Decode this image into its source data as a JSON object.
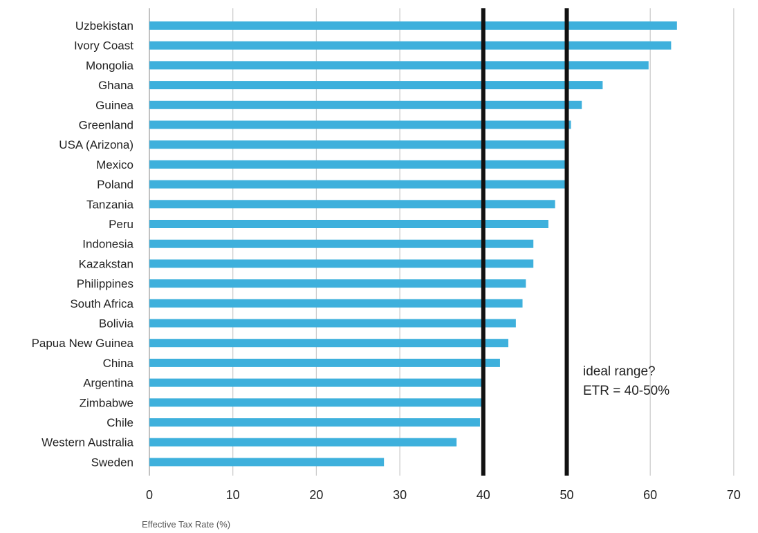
{
  "chart_data": {
    "type": "bar",
    "orientation": "horizontal",
    "categories": [
      "Uzbekistan",
      "Ivory Coast",
      "Mongolia",
      "Ghana",
      "Guinea",
      "Greenland",
      "USA (Arizona)",
      "Mexico",
      "Poland",
      "Tanzania",
      "Peru",
      "Indonesia",
      "Kazakstan",
      "Philippines",
      "South Africa",
      "Bolivia",
      "Papua New Guinea",
      "China",
      "Argentina",
      "Zimbabwe",
      "Chile",
      "Western Australia",
      "Sweden"
    ],
    "values": [
      63.2,
      62.5,
      59.8,
      54.3,
      51.8,
      50.5,
      50.0,
      50.0,
      50.0,
      48.6,
      47.8,
      46.0,
      46.0,
      45.1,
      44.7,
      43.9,
      43.0,
      42.0,
      40.0,
      39.9,
      39.6,
      36.8,
      28.1
    ],
    "xlabel": "Effective Tax Rate (%)",
    "xticks": [
      0,
      10,
      20,
      30,
      40,
      50,
      60,
      70
    ],
    "xlim": [
      0,
      70
    ],
    "grid": true,
    "bar_color": "#3eb0dc",
    "reference_lines": [
      40,
      50
    ],
    "reference_line_color": "#111111",
    "annotation": {
      "line1": "ideal range?",
      "line2": "ETR = 40-50%"
    }
  }
}
